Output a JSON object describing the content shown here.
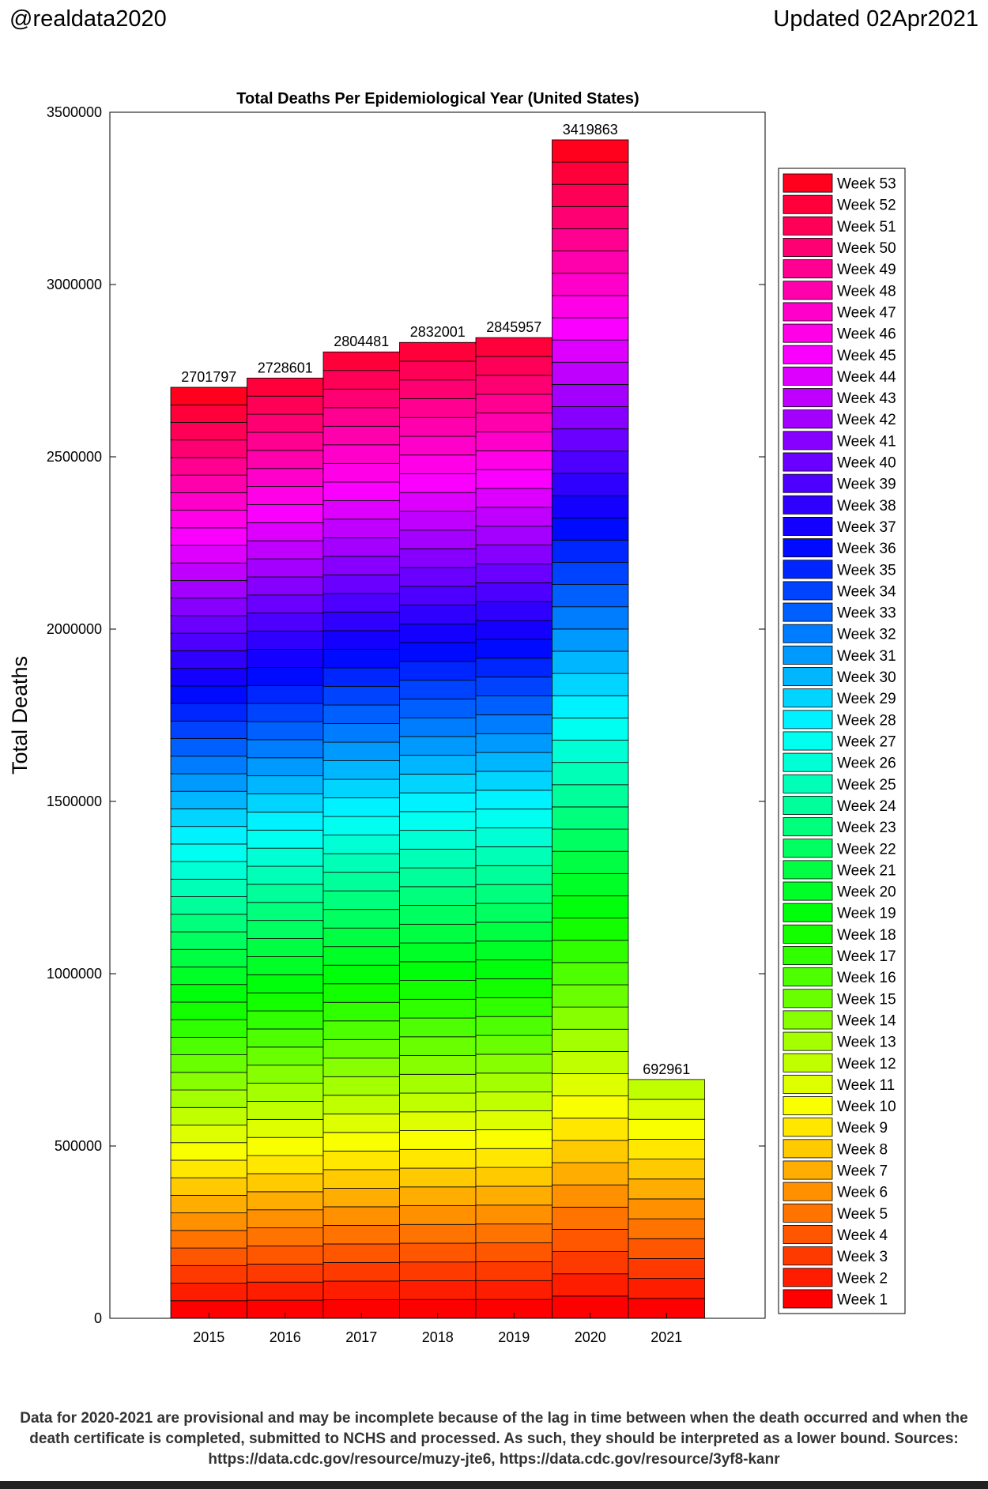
{
  "header": {
    "handle": "@realdata2020",
    "updated": "Updated 02Apr2021"
  },
  "footnote": "Data for 2020-2021 are provisional and may be incomplete because of the lag in time between when the death occurred and when the death certificate is completed, submitted to NCHS and processed.  As such, they should be interpreted as a lower bound.  Sources: https://data.cdc.gov/resource/muzy-jte6, https://data.cdc.gov/resource/3yf8-kanr",
  "chart_data": {
    "type": "bar",
    "stacked": true,
    "title": "Total Deaths Per Epidemiological Year (United States)",
    "xlabel": "",
    "ylabel": "Total Deaths",
    "ylim": [
      0,
      3500000
    ],
    "yticks": [
      "0",
      "500000",
      "1000000",
      "1500000",
      "2000000",
      "2500000",
      "3000000",
      "3500000"
    ],
    "categories": [
      "2015",
      "2016",
      "2017",
      "2018",
      "2019",
      "2020",
      "2021"
    ],
    "totals": [
      2701797,
      2728601,
      2804481,
      2832001,
      2845957,
      3419863,
      692961
    ],
    "total_labels": [
      "2701797",
      "2728601",
      "2804481",
      "2832001",
      "2845957",
      "3419863",
      "692961"
    ],
    "weeks_per_year": [
      53,
      52,
      52,
      52,
      52,
      53,
      12
    ],
    "series_note": "Each bar is stacked from Week 1 (bottom) to the last week (top); segment colours follow the legend",
    "legend": {
      "placement": "right",
      "entries": [
        "Week 53",
        "Week 52",
        "Week 51",
        "Week 50",
        "Week 49",
        "Week 48",
        "Week 47",
        "Week 46",
        "Week 45",
        "Week 44",
        "Week 43",
        "Week 42",
        "Week 41",
        "Week 40",
        "Week 39",
        "Week 38",
        "Week 37",
        "Week 36",
        "Week 35",
        "Week 34",
        "Week 33",
        "Week 32",
        "Week 31",
        "Week 30",
        "Week 29",
        "Week 28",
        "Week 27",
        "Week 26",
        "Week 25",
        "Week 24",
        "Week 23",
        "Week 22",
        "Week 21",
        "Week 20",
        "Week 19",
        "Week 18",
        "Week 17",
        "Week 16",
        "Week 15",
        "Week 14",
        "Week 13",
        "Week 12",
        "Week 11",
        "Week 10",
        "Week 9",
        "Week 8",
        "Week 7",
        "Week 6",
        "Week 5",
        "Week 4",
        "Week 3",
        "Week 2",
        "Week 1"
      ]
    },
    "colormap": "hsv"
  }
}
